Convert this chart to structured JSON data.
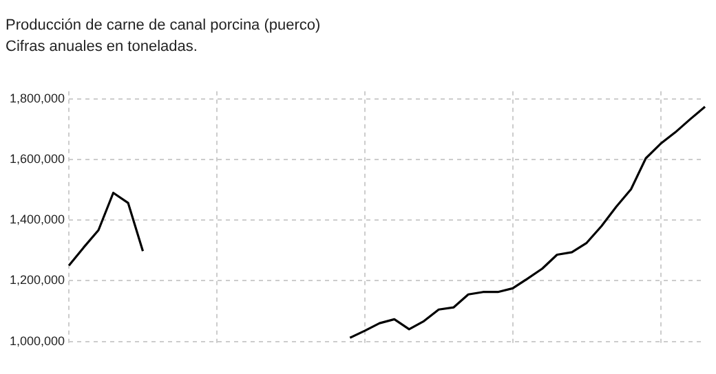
{
  "chart_data": {
    "type": "line",
    "title": "Producción de carne de canal porcina (puerco)",
    "subtitle": "Cifras anuales en toneladas.",
    "categories": [
      null,
      null,
      null,
      null,
      null,
      null,
      null,
      null,
      null,
      null,
      null,
      null,
      null,
      null,
      null,
      null,
      null,
      null,
      null,
      null,
      null,
      null,
      null,
      null,
      null,
      null,
      null,
      null,
      null,
      null,
      null,
      null,
      null,
      null,
      null,
      null,
      null,
      null,
      null,
      null,
      null,
      null,
      null,
      null
    ],
    "series": [
      {
        "color": "#000000",
        "values": [
          1250000,
          1310000,
          1367000,
          1490000,
          1457000,
          1298000,
          null,
          null,
          null,
          null,
          null,
          null,
          null,
          null,
          null,
          null,
          null,
          null,
          null,
          null,
          null,
          null,
          null,
          null,
          null,
          null,
          null,
          null,
          null,
          null,
          null,
          null,
          null,
          null,
          null,
          null,
          null,
          null,
          null,
          null,
          null,
          null,
          null,
          null
        ]
      },
      {
        "color": "#000000",
        "values": [
          null,
          null,
          null,
          null,
          null,
          null,
          null,
          null,
          null,
          null,
          null,
          null,
          null,
          null,
          null,
          null,
          null,
          null,
          null,
          1012000,
          1035000,
          1060000,
          1073000,
          1040000,
          1067000,
          1105000,
          1112000,
          1155000,
          1163000,
          1163000,
          1175000,
          1207000,
          1240000,
          1286000,
          1294000,
          1325000,
          1380000,
          1444000,
          1502000,
          1604000,
          1652000,
          1690000,
          1733000,
          1774000
        ]
      }
    ],
    "ylim": [
      985000,
      1825000
    ],
    "yticks": [
      {
        "value": 1000000,
        "label": "1,000,000"
      },
      {
        "value": 1200000,
        "label": "1,200,000"
      },
      {
        "value": 1400000,
        "label": "1,400,000"
      },
      {
        "value": 1600000,
        "label": "1,600,000"
      },
      {
        "value": 1800000,
        "label": "1,800,000"
      }
    ],
    "grid": true,
    "legend": false,
    "marker": "none",
    "line_style": "solid"
  }
}
